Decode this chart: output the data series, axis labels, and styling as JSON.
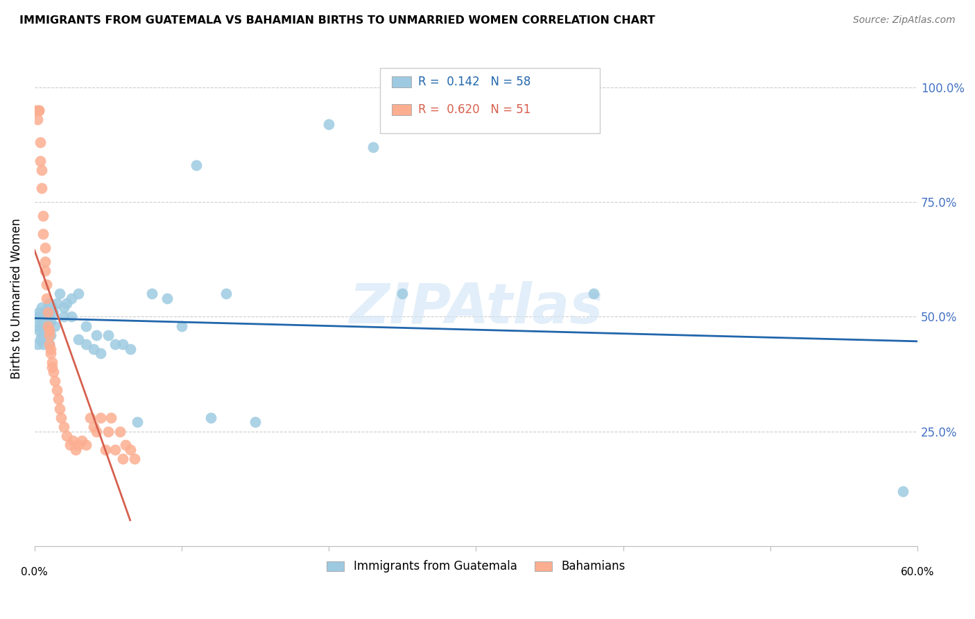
{
  "title": "IMMIGRANTS FROM GUATEMALA VS BAHAMIAN BIRTHS TO UNMARRIED WOMEN CORRELATION CHART",
  "source": "Source: ZipAtlas.com",
  "ylabel": "Births to Unmarried Women",
  "right_ytick_vals": [
    0.25,
    0.5,
    0.75,
    1.0
  ],
  "right_ytick_labels": [
    "25.0%",
    "50.0%",
    "75.0%",
    "100.0%"
  ],
  "watermark": "ZIPAtlas",
  "legend_blue_r_val": "0.142",
  "legend_blue_n_val": "58",
  "legend_pink_r_val": "0.620",
  "legend_pink_n_val": "51",
  "legend_label_blue": "Immigrants from Guatemala",
  "legend_label_pink": "Bahamians",
  "blue_color": "#9ecae1",
  "pink_color": "#fcae91",
  "trend_blue_color": "#2166ac",
  "trend_pink_color": "#d6604d",
  "blue_r_color": "#2166ac",
  "pink_r_color": "#d6604d",
  "right_axis_color": "#4472c4",
  "xlim": [
    0.0,
    0.6
  ],
  "ylim": [
    0.0,
    1.08
  ],
  "blue_dots_x": [
    0.001,
    0.002,
    0.002,
    0.003,
    0.003,
    0.004,
    0.004,
    0.004,
    0.005,
    0.005,
    0.006,
    0.006,
    0.007,
    0.007,
    0.008,
    0.008,
    0.009,
    0.009,
    0.01,
    0.01,
    0.01,
    0.01,
    0.011,
    0.011,
    0.012,
    0.013,
    0.014,
    0.015,
    0.017,
    0.02,
    0.02,
    0.022,
    0.025,
    0.025,
    0.03,
    0.03,
    0.035,
    0.035,
    0.04,
    0.042,
    0.045,
    0.05,
    0.055,
    0.06,
    0.065,
    0.07,
    0.08,
    0.09,
    0.1,
    0.11,
    0.12,
    0.13,
    0.15,
    0.2,
    0.23,
    0.25,
    0.38,
    0.59
  ],
  "blue_dots_y": [
    0.48,
    0.44,
    0.5,
    0.47,
    0.51,
    0.45,
    0.48,
    0.5,
    0.46,
    0.52,
    0.44,
    0.49,
    0.47,
    0.51,
    0.46,
    0.5,
    0.48,
    0.52,
    0.44,
    0.47,
    0.5,
    0.53,
    0.46,
    0.49,
    0.52,
    0.51,
    0.48,
    0.53,
    0.55,
    0.5,
    0.52,
    0.53,
    0.5,
    0.54,
    0.45,
    0.55,
    0.44,
    0.48,
    0.43,
    0.46,
    0.42,
    0.46,
    0.44,
    0.44,
    0.43,
    0.27,
    0.55,
    0.54,
    0.48,
    0.83,
    0.28,
    0.55,
    0.27,
    0.92,
    0.87,
    0.55,
    0.55,
    0.12
  ],
  "pink_dots_x": [
    0.001,
    0.002,
    0.003,
    0.003,
    0.004,
    0.004,
    0.005,
    0.005,
    0.006,
    0.006,
    0.007,
    0.007,
    0.007,
    0.008,
    0.008,
    0.009,
    0.009,
    0.01,
    0.01,
    0.01,
    0.011,
    0.011,
    0.012,
    0.012,
    0.013,
    0.014,
    0.015,
    0.016,
    0.017,
    0.018,
    0.02,
    0.022,
    0.024,
    0.026,
    0.028,
    0.03,
    0.032,
    0.035,
    0.038,
    0.04,
    0.042,
    0.045,
    0.048,
    0.05,
    0.052,
    0.055,
    0.058,
    0.06,
    0.062,
    0.065,
    0.068
  ],
  "pink_dots_y": [
    0.95,
    0.93,
    0.95,
    0.95,
    0.88,
    0.84,
    0.82,
    0.78,
    0.72,
    0.68,
    0.65,
    0.62,
    0.6,
    0.57,
    0.54,
    0.51,
    0.48,
    0.47,
    0.46,
    0.44,
    0.43,
    0.42,
    0.4,
    0.39,
    0.38,
    0.36,
    0.34,
    0.32,
    0.3,
    0.28,
    0.26,
    0.24,
    0.22,
    0.23,
    0.21,
    0.22,
    0.23,
    0.22,
    0.28,
    0.26,
    0.25,
    0.28,
    0.21,
    0.25,
    0.28,
    0.21,
    0.25,
    0.19,
    0.22,
    0.21,
    0.19
  ]
}
